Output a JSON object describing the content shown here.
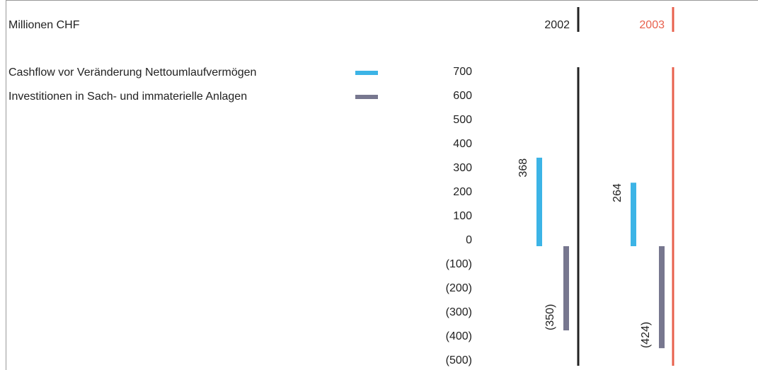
{
  "chart_data": {
    "type": "bar",
    "title": "Millionen CHF",
    "categories": [
      "2002",
      "2003"
    ],
    "category_colors": [
      "#222222",
      "#e8604c"
    ],
    "series": [
      {
        "name": "Cashflow vor Veränderung Nettoumlaufvermögen",
        "color": "#3cb4e6",
        "values": [
          368,
          264
        ]
      },
      {
        "name": "Investitionen in Sach- und immaterielle Anlagen",
        "color": "#77778f",
        "values": [
          -350,
          -424
        ],
        "value_labels": [
          "(350)",
          "(424)"
        ]
      }
    ],
    "ylim": [
      -500,
      700
    ],
    "yticks": [
      700,
      600,
      500,
      400,
      300,
      200,
      100,
      0,
      {
        "value": -100,
        "label": "(100)"
      },
      {
        "value": -200,
        "label": "(200)"
      },
      {
        "value": -300,
        "label": "(300)"
      },
      {
        "value": -400,
        "label": "(400)"
      },
      {
        "value": -500,
        "label": "(500)"
      }
    ]
  }
}
